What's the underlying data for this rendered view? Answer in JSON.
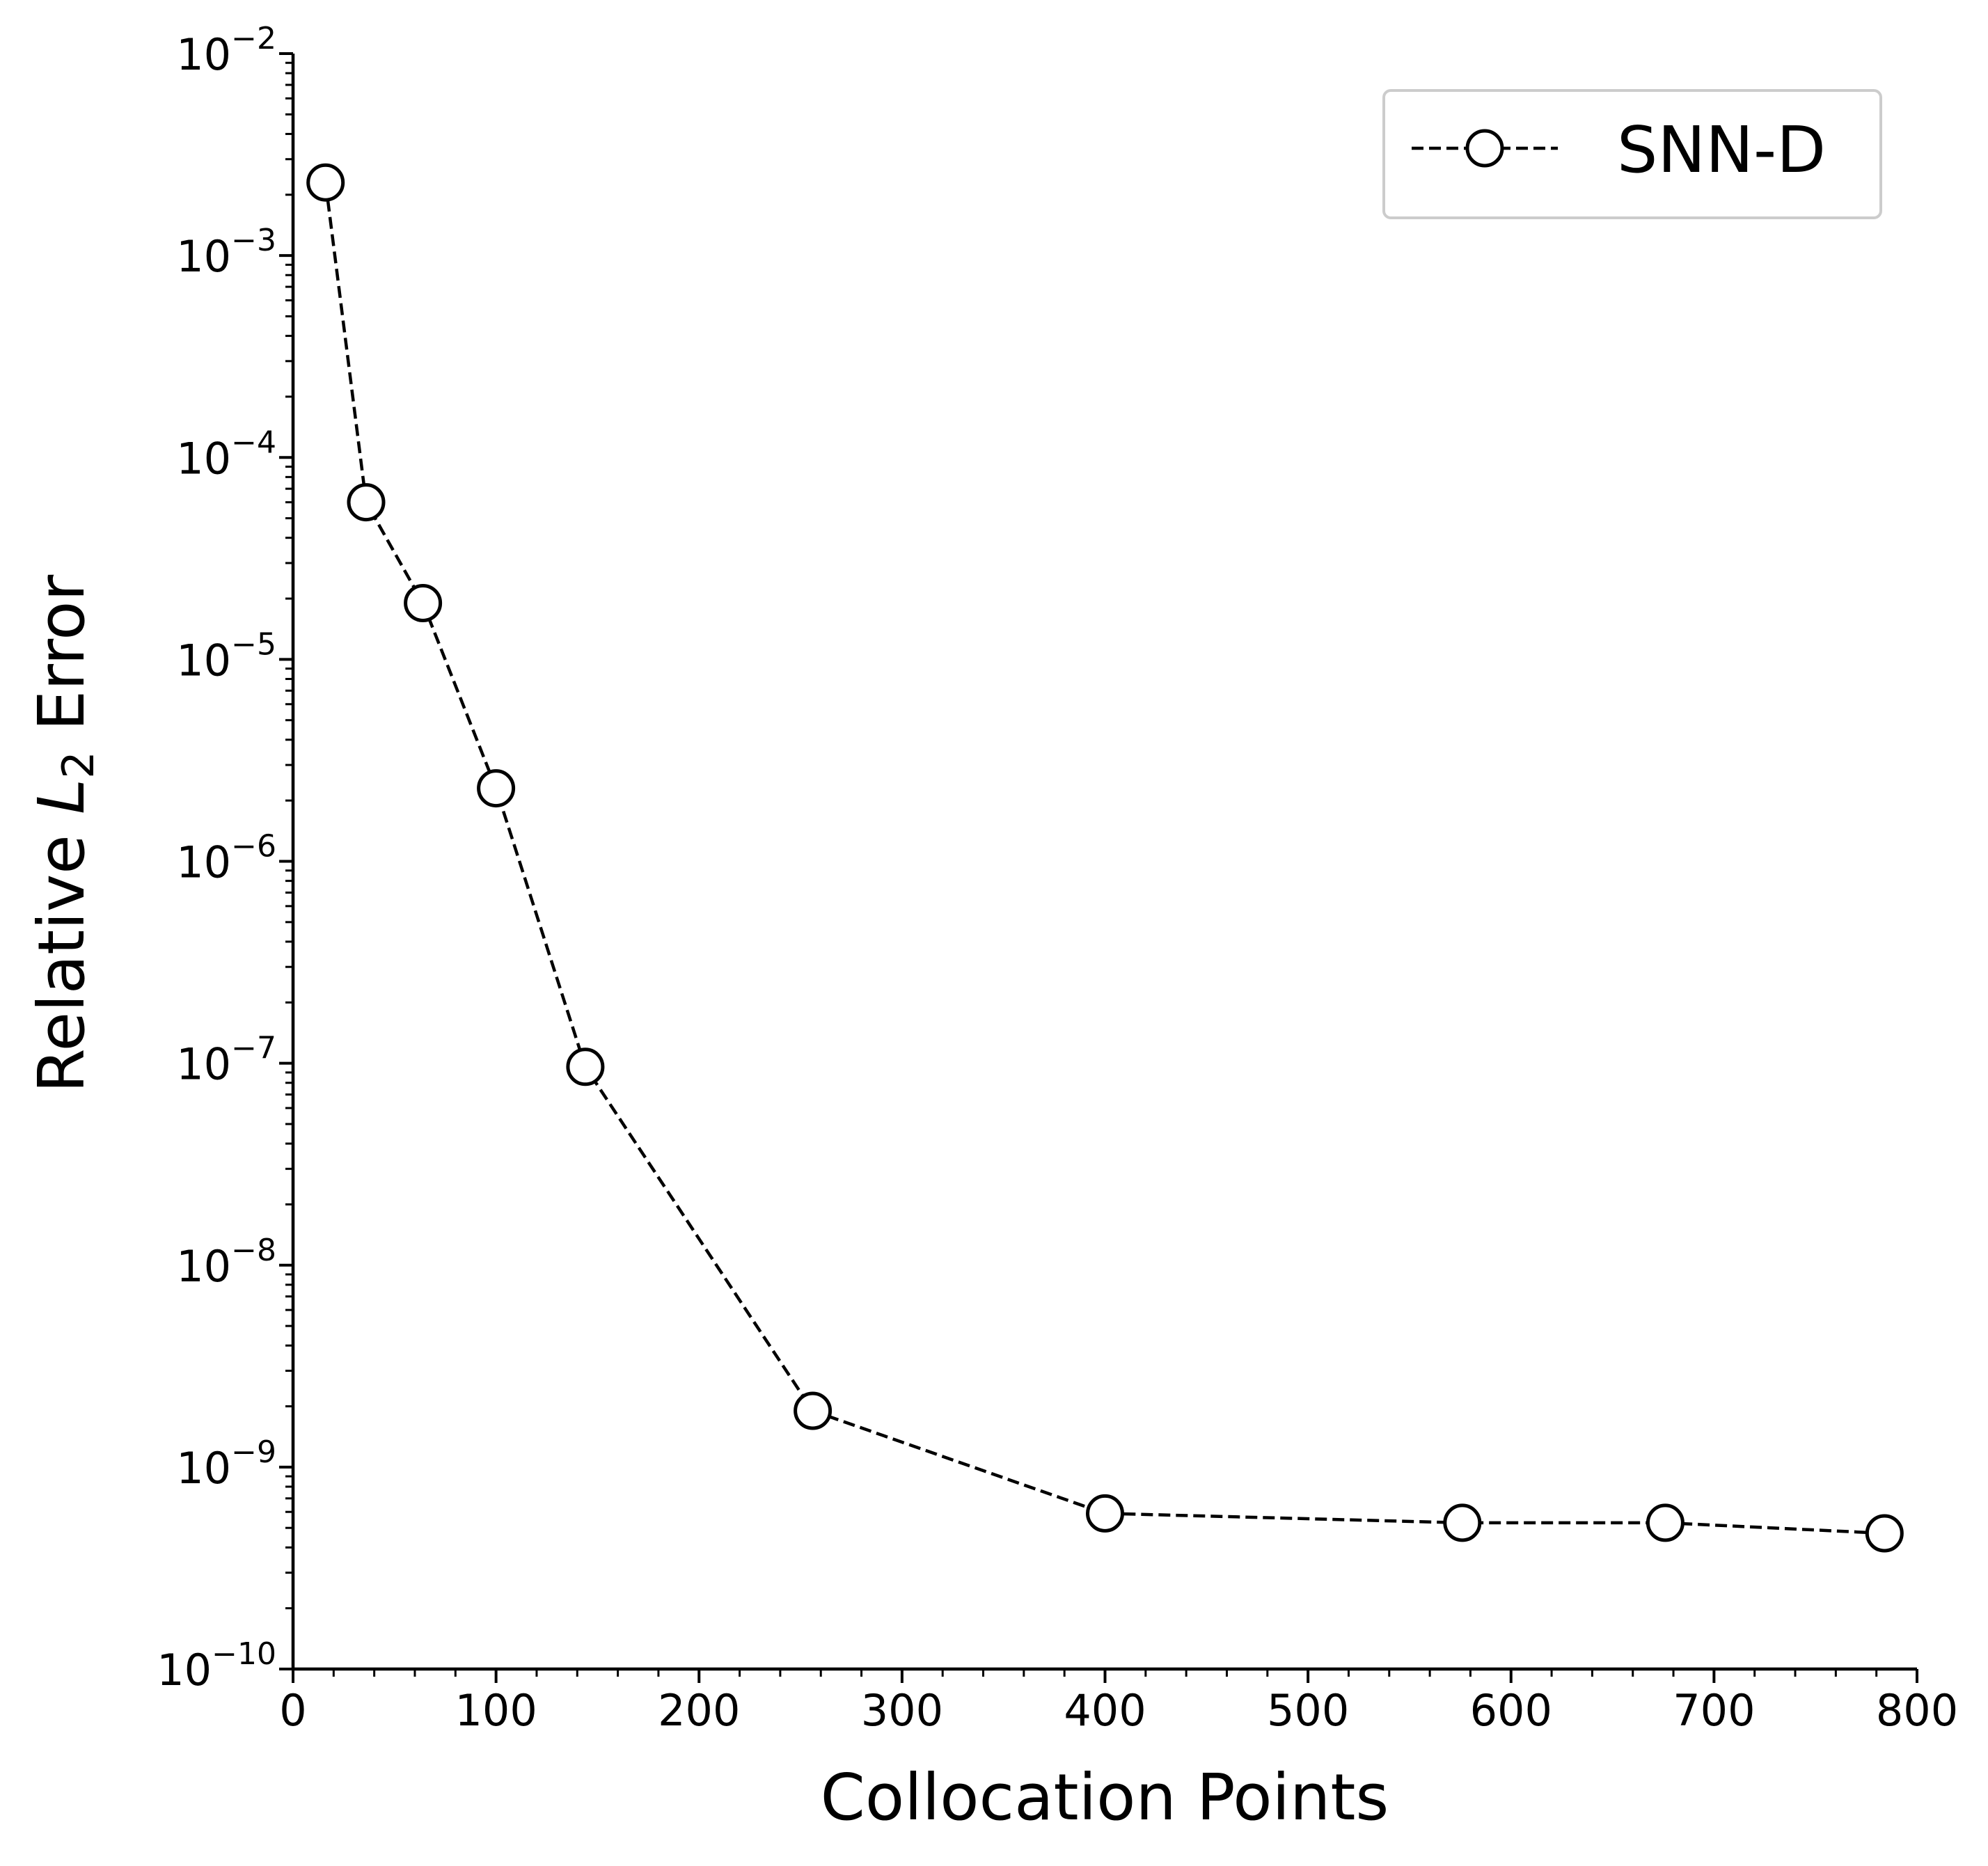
{
  "chart_data": {
    "type": "line",
    "xlabel": "Collocation Points",
    "ylabel": {
      "prefix": "Relative ",
      "symbol": "L",
      "subscript": "2",
      "suffix": " Error"
    },
    "xlim": [
      0,
      800
    ],
    "ylim": [
      1e-10,
      0.01
    ],
    "yscale": "log",
    "grid": false,
    "legend_position": "top-right",
    "x_ticks": [
      0,
      100,
      200,
      300,
      400,
      500,
      600,
      700,
      800
    ],
    "y_ticks": [
      {
        "value": 1e-10,
        "base": "10",
        "exp": "−10"
      },
      {
        "value": 1e-09,
        "base": "10",
        "exp": "−9"
      },
      {
        "value": 1e-08,
        "base": "10",
        "exp": "−8"
      },
      {
        "value": 1e-07,
        "base": "10",
        "exp": "−7"
      },
      {
        "value": 1e-06,
        "base": "10",
        "exp": "−6"
      },
      {
        "value": 1e-05,
        "base": "10",
        "exp": "−5"
      },
      {
        "value": 0.0001,
        "base": "10",
        "exp": "−4"
      },
      {
        "value": 0.001,
        "base": "10",
        "exp": "−3"
      },
      {
        "value": 0.01,
        "base": "10",
        "exp": "−2"
      }
    ],
    "series": [
      {
        "name": "SNN-D",
        "color": "#000000",
        "line_style": "dashed",
        "marker": "open-circle",
        "x": [
          16,
          36,
          64,
          100,
          144,
          256,
          400,
          576,
          676,
          784
        ],
        "y": [
          0.0023,
          6e-05,
          1.9e-05,
          2.3e-06,
          9.6e-08,
          1.9e-09,
          5.9e-10,
          5.3e-10,
          5.3e-10,
          4.7e-10
        ]
      }
    ]
  }
}
